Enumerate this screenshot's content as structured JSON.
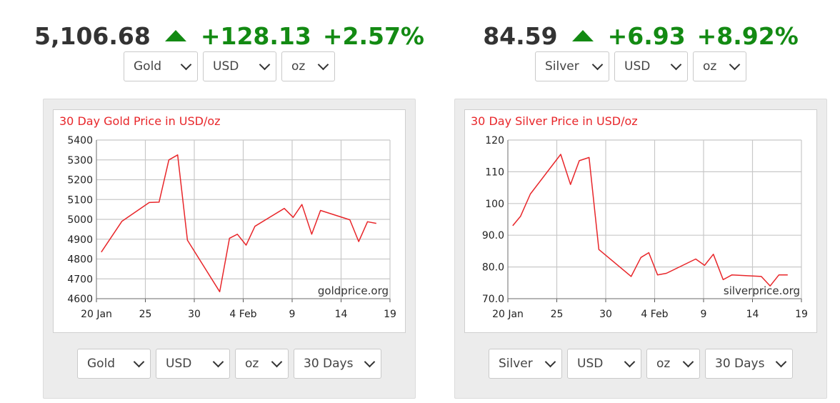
{
  "widgets": [
    {
      "id": "gold",
      "price": "5,106.68",
      "change": "+128.13",
      "change_pct": "+2.57%",
      "selectors_top": [
        "Gold",
        "USD",
        "oz"
      ],
      "selectors_bottom": [
        "Gold",
        "USD",
        "oz",
        "30 Days"
      ],
      "watermark": "goldprice.org"
    },
    {
      "id": "silver",
      "price": "84.59",
      "change": "+6.93",
      "change_pct": "+8.92%",
      "selectors_top": [
        "Silver",
        "USD",
        "oz"
      ],
      "selectors_bottom": [
        "Silver",
        "USD",
        "oz",
        "30 Days"
      ],
      "watermark": "silverprice.org"
    }
  ],
  "colors": {
    "up": "#138a13",
    "line": "#e8262a",
    "grid": "#c8c8c8",
    "title": "#e8262a"
  },
  "chart_data": [
    {
      "type": "line",
      "title": "30 Day Gold Price in USD/oz",
      "xlabel": "",
      "ylabel": "",
      "xlim": [
        20,
        50
      ],
      "ylim": [
        4600,
        5400
      ],
      "x_ticks": [
        20,
        25,
        30,
        35,
        40,
        45,
        50
      ],
      "x_tick_labels": [
        "20 Jan",
        "25",
        "30",
        "4 Feb",
        "9",
        "14",
        "19"
      ],
      "y_ticks": [
        4600,
        4700,
        4800,
        4900,
        5000,
        5100,
        5200,
        5300,
        5400
      ],
      "y_tick_labels": [
        "4600",
        "4700",
        "4800",
        "4900",
        "5000",
        "5100",
        "5200",
        "5300",
        "5400"
      ],
      "grid": true,
      "series": [
        {
          "x": [
            20.5,
            22.6,
            25.4,
            26.4,
            27.4,
            28.3,
            29.3,
            32.6,
            33.6,
            34.4,
            35.3,
            36.2,
            39.2,
            40.1,
            41.0,
            42.0,
            42.9,
            45.9,
            46.8,
            47.7,
            48.6
          ],
          "y": [
            4835,
            4990,
            5085,
            5087,
            5300,
            5325,
            4895,
            4635,
            4905,
            4925,
            4870,
            4965,
            5055,
            5010,
            5075,
            4925,
            5045,
            4998,
            4888,
            4988,
            4980
          ]
        }
      ]
    },
    {
      "type": "line",
      "title": "30 Day Silver Price in USD/oz",
      "xlabel": "",
      "ylabel": "",
      "xlim": [
        20,
        50
      ],
      "ylim": [
        70,
        120
      ],
      "x_ticks": [
        20,
        25,
        30,
        35,
        40,
        45,
        50
      ],
      "x_tick_labels": [
        "20 Jan",
        "25",
        "30",
        "4 Feb",
        "9",
        "14",
        "19"
      ],
      "y_ticks": [
        70,
        80,
        90,
        100,
        110,
        120
      ],
      "y_tick_labels": [
        "70.0",
        "80.0",
        "90.0",
        "100",
        "110",
        "120"
      ],
      "grid": true,
      "series": [
        {
          "x": [
            20.5,
            21.3,
            22.3,
            25.4,
            26.4,
            27.3,
            28.3,
            29.3,
            32.6,
            33.6,
            34.4,
            35.3,
            36.2,
            39.2,
            40.1,
            41.0,
            42.0,
            42.9,
            45.9,
            46.8,
            47.7,
            48.6
          ],
          "y": [
            93,
            96,
            103,
            115.5,
            106,
            113.5,
            114.5,
            85.5,
            77,
            83,
            84.5,
            77.5,
            78,
            82.5,
            80.5,
            84,
            76,
            77.5,
            77,
            74,
            77.5,
            77.5
          ]
        }
      ]
    }
  ]
}
